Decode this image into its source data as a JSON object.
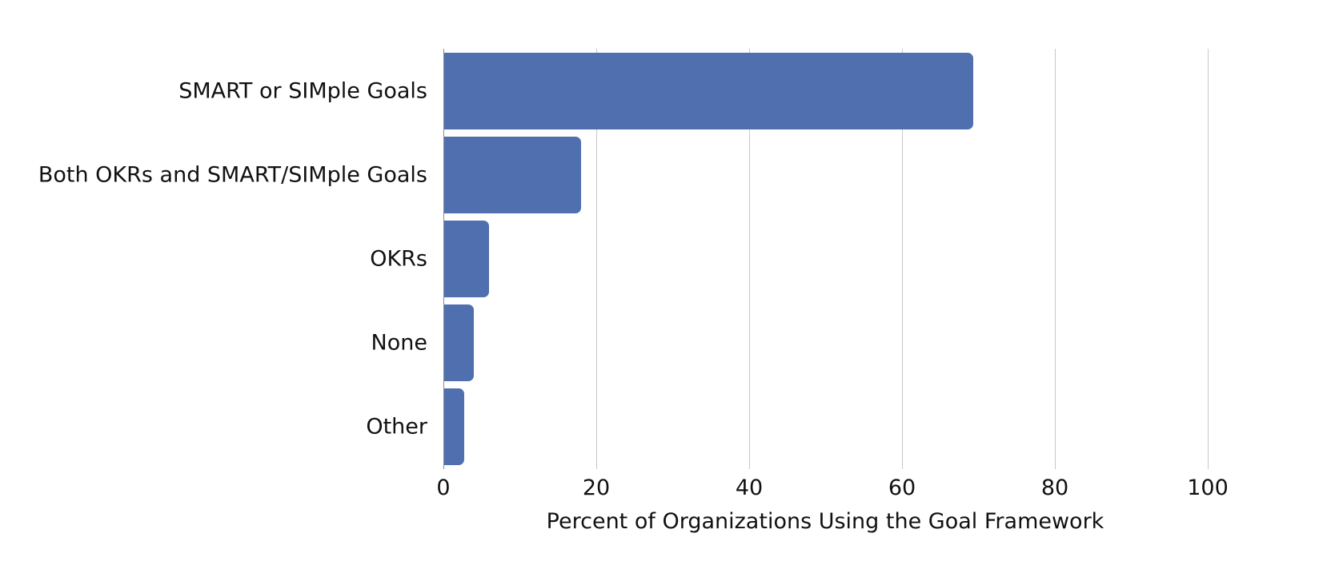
{
  "chart_data": {
    "type": "bar",
    "orientation": "horizontal",
    "title": "",
    "categories": [
      "SMART or SIMple Goals",
      "Both OKRs and SMART/SIMple Goals",
      "OKRs",
      "None",
      "Other"
    ],
    "values": [
      69.3,
      18.0,
      6.0,
      4.0,
      2.7
    ],
    "xlabel": "Percent of Organizations Using the Goal Framework",
    "ylabel": "",
    "xlim": [
      0,
      100
    ],
    "xticks": [
      "0",
      "20",
      "40",
      "60",
      "80",
      "100"
    ],
    "grid": true,
    "legend": null,
    "bar_color": "#4f6faf"
  }
}
